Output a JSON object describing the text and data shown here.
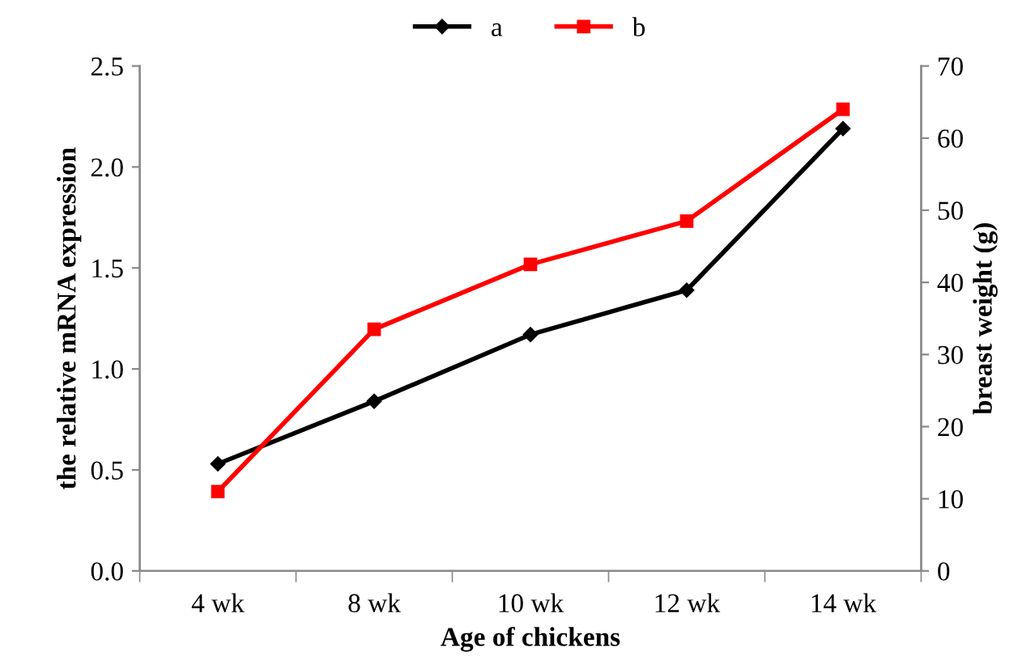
{
  "chart_data": {
    "type": "line",
    "xlabel": "Age of chickens",
    "ylabel": "the relative mRNA expression",
    "y2label": "breast weight (g)",
    "categories": [
      "4 wk",
      "8 wk",
      "10 wk",
      "12 wk",
      "14 wk"
    ],
    "series": [
      {
        "name": "a",
        "color": "#000000",
        "marker": "diamond",
        "values": [
          0.53,
          0.84,
          1.17,
          1.39,
          2.19
        ]
      },
      {
        "name": "b",
        "color": "#ff0000",
        "marker": "square",
        "axis": "y2",
        "values": [
          11,
          33.5,
          42.5,
          48.5,
          64
        ]
      }
    ],
    "ylim": [
      0,
      2.5
    ],
    "yticks": [
      {
        "value": 0,
        "label": "0.0"
      },
      0.5,
      {
        "value": 1,
        "label": "1.0"
      },
      1.5,
      {
        "value": 2,
        "label": "2.0"
      },
      2.5
    ],
    "y2lim": [
      0,
      70
    ],
    "y2ticks": [
      0,
      10,
      20,
      30,
      40,
      50,
      60,
      70
    ],
    "grid": false,
    "legend": "top",
    "line_style": "solid"
  }
}
